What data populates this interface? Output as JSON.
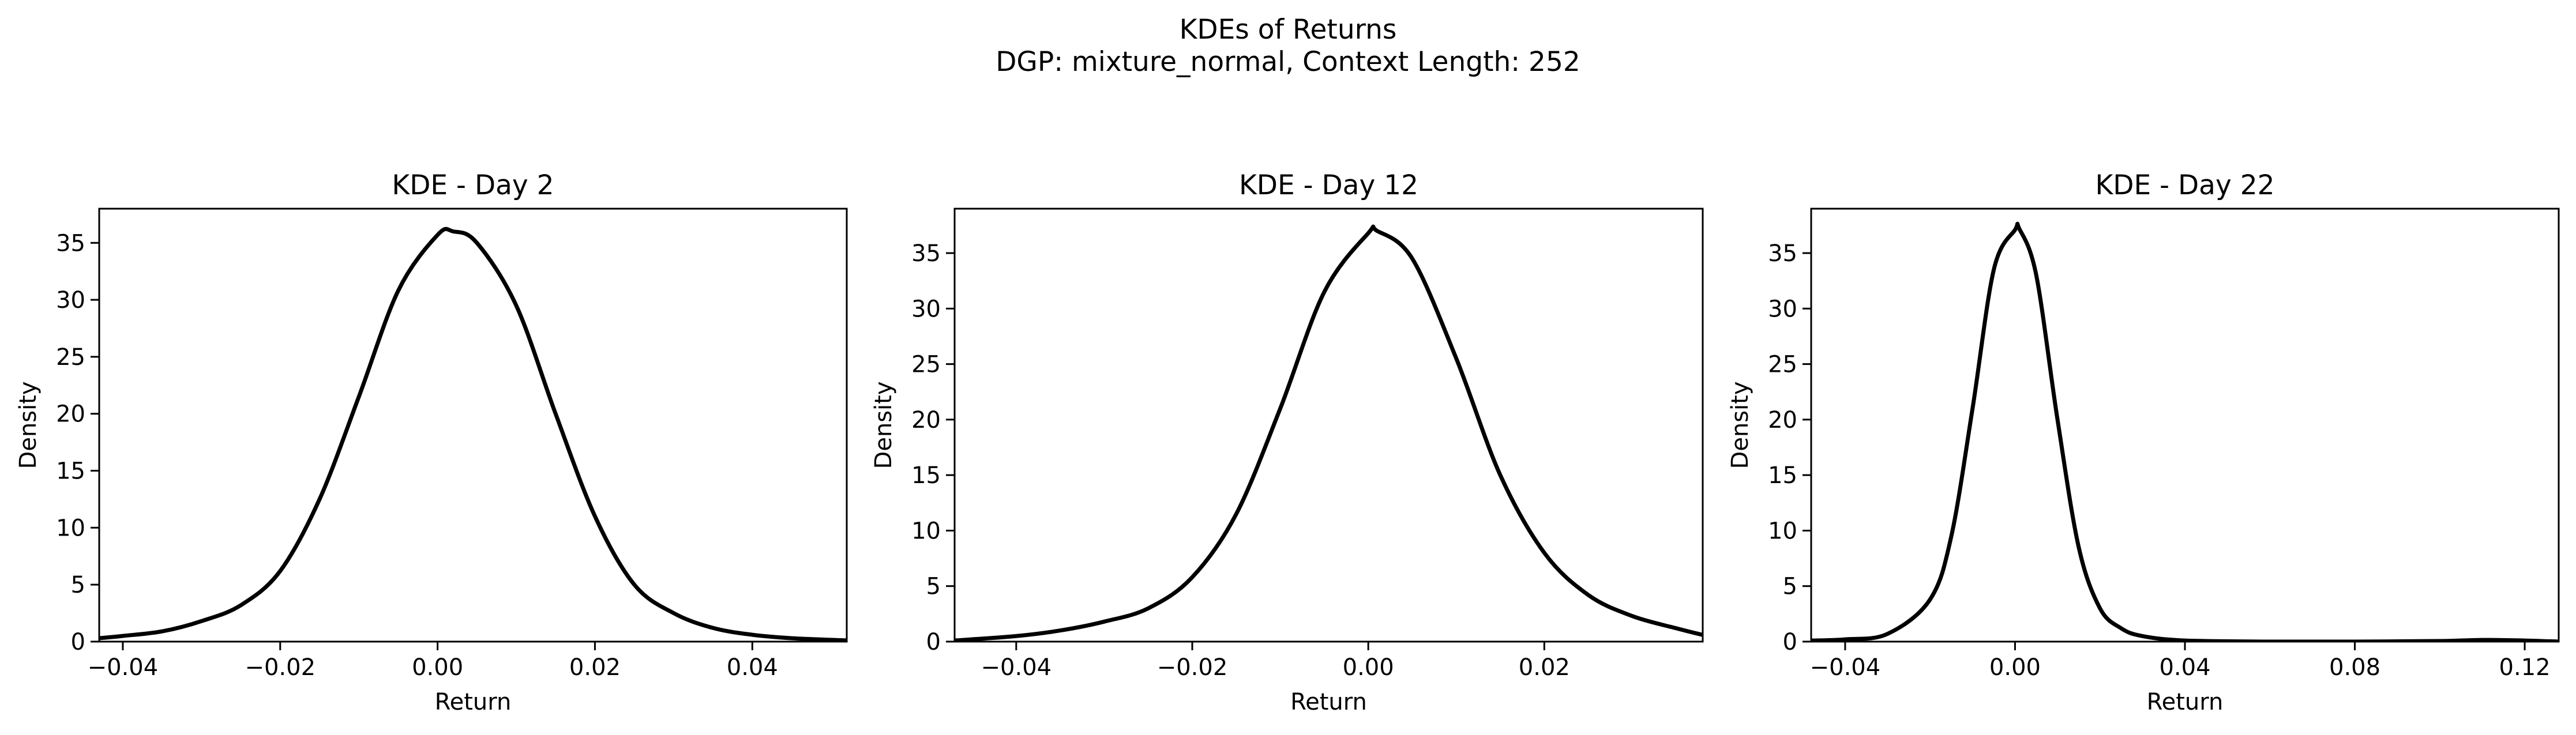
{
  "figure": {
    "title_line1": "KDEs of Returns",
    "title_line2": "DGP: mixture_normal, Context Length: 252"
  },
  "colors": {
    "line": "#000000",
    "axes": "#000000",
    "background": "#ffffff"
  },
  "chart_data": [
    {
      "type": "line",
      "title": "KDE - Day 2",
      "xlabel": "Return",
      "ylabel": "Density",
      "xlim": [
        -0.043,
        0.052
      ],
      "ylim": [
        0,
        38
      ],
      "xticks": [
        -0.04,
        -0.02,
        0.0,
        0.02,
        0.04
      ],
      "xtick_labels": [
        "−0.04",
        "−0.02",
        "0.00",
        "0.02",
        "0.04"
      ],
      "yticks": [
        0,
        5,
        10,
        15,
        20,
        25,
        30,
        35
      ],
      "ytick_labels": [
        "0",
        "5",
        "10",
        "15",
        "20",
        "25",
        "30",
        "35"
      ],
      "grid": false,
      "series": [
        {
          "x": [
            -0.043,
            -0.04,
            -0.035,
            -0.03,
            -0.025,
            -0.02,
            -0.015,
            -0.01,
            -0.005,
            0.0,
            0.002,
            0.005,
            0.01,
            0.015,
            0.02,
            0.025,
            0.03,
            0.035,
            0.04,
            0.045,
            0.052
          ],
          "y": [
            0.3,
            0.5,
            0.9,
            1.8,
            3.2,
            6.2,
            12.5,
            21.5,
            30.8,
            35.7,
            36.0,
            35.0,
            29.5,
            20.0,
            11.0,
            5.0,
            2.5,
            1.2,
            0.6,
            0.3,
            0.1
          ]
        }
      ]
    },
    {
      "type": "line",
      "title": "KDE - Day 12",
      "xlabel": "Return",
      "ylabel": "Density",
      "xlim": [
        -0.047,
        0.038
      ],
      "ylim": [
        0,
        39
      ],
      "xticks": [
        -0.04,
        -0.02,
        0.0,
        0.02
      ],
      "xtick_labels": [
        "−0.04",
        "−0.02",
        "0.00",
        "0.02"
      ],
      "yticks": [
        0,
        5,
        10,
        15,
        20,
        25,
        30,
        35
      ],
      "ytick_labels": [
        "0",
        "5",
        "10",
        "15",
        "20",
        "25",
        "30",
        "35"
      ],
      "grid": false,
      "series": [
        {
          "x": [
            -0.047,
            -0.04,
            -0.035,
            -0.03,
            -0.025,
            -0.02,
            -0.015,
            -0.01,
            -0.005,
            0.0,
            0.001,
            0.005,
            0.01,
            0.015,
            0.02,
            0.025,
            0.03,
            0.035,
            0.038
          ],
          "y": [
            0.1,
            0.5,
            1.0,
            1.8,
            3.0,
            5.8,
            11.5,
            21.0,
            31.5,
            36.8,
            37.0,
            34.5,
            25.5,
            15.0,
            8.0,
            4.2,
            2.3,
            1.2,
            0.6
          ]
        }
      ]
    },
    {
      "type": "line",
      "title": "KDE - Day 22",
      "xlabel": "Return",
      "ylabel": "Density",
      "xlim": [
        -0.048,
        0.128
      ],
      "ylim": [
        0,
        39
      ],
      "xticks": [
        -0.04,
        0.0,
        0.04,
        0.08,
        0.12
      ],
      "xtick_labels": [
        "−0.04",
        "0.00",
        "0.04",
        "0.08",
        "0.12"
      ],
      "yticks": [
        0,
        5,
        10,
        15,
        20,
        25,
        30,
        35
      ],
      "ytick_labels": [
        "0",
        "5",
        "10",
        "15",
        "20",
        "25",
        "30",
        "35"
      ],
      "grid": false,
      "series": [
        {
          "x": [
            -0.048,
            -0.04,
            -0.03,
            -0.02,
            -0.015,
            -0.01,
            -0.005,
            0.0,
            0.001,
            0.005,
            0.01,
            0.015,
            0.02,
            0.025,
            0.03,
            0.04,
            0.06,
            0.08,
            0.1,
            0.11,
            0.12,
            0.128
          ],
          "y": [
            0.1,
            0.2,
            0.7,
            3.8,
            9.5,
            21.0,
            33.5,
            37.1,
            37.2,
            33.0,
            20.0,
            8.5,
            3.0,
            1.2,
            0.5,
            0.1,
            0.0,
            0.0,
            0.05,
            0.15,
            0.1,
            0.0
          ]
        }
      ]
    }
  ]
}
